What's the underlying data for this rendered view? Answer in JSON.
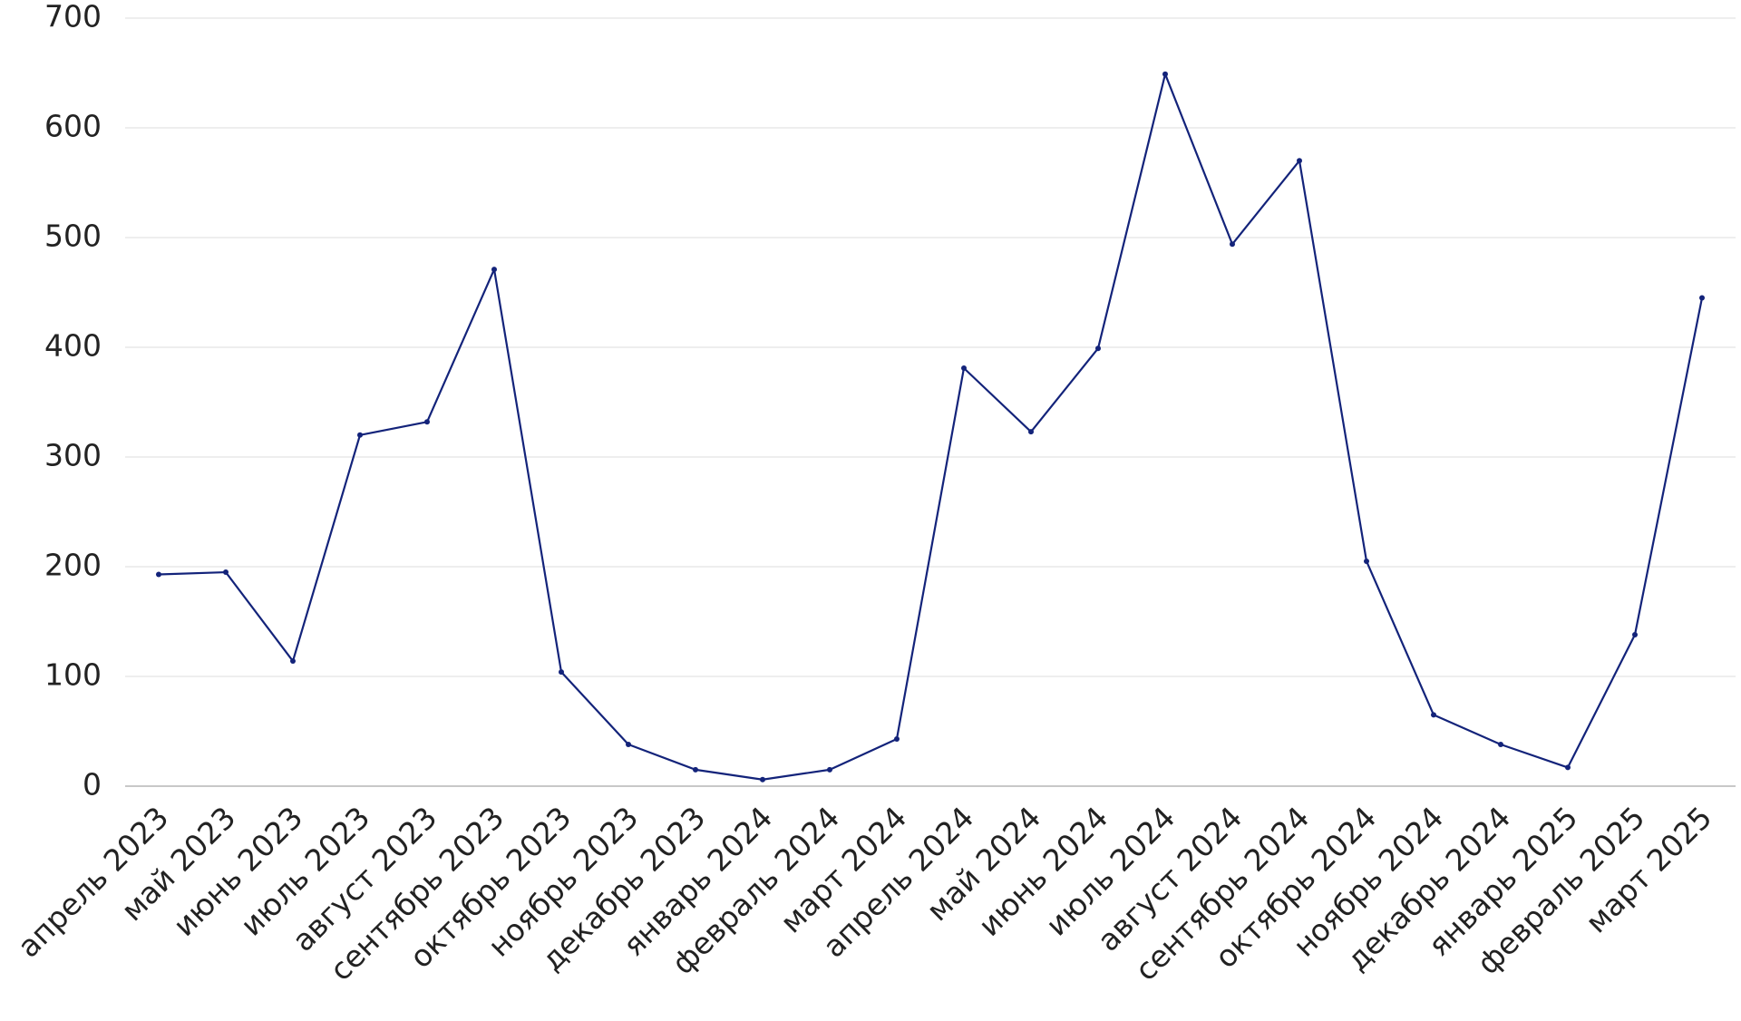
{
  "chart_data": {
    "type": "line",
    "categories": [
      "апрель 2023",
      "май 2023",
      "июнь 2023",
      "июль 2023",
      "август 2023",
      "сентябрь 2023",
      "октябрь 2023",
      "ноябрь 2023",
      "декабрь 2023",
      "январь 2024",
      "февраль 2024",
      "март 2024",
      "апрель 2024",
      "май 2024",
      "июнь 2024",
      "июль 2024",
      "август 2024",
      "сентябрь 2024",
      "октябрь 2024",
      "ноябрь 2024",
      "декабрь 2024",
      "январь 2025",
      "февраль 2025",
      "март 2025"
    ],
    "values": [
      193,
      195,
      114,
      320,
      332,
      471,
      104,
      38,
      15,
      6,
      15,
      43,
      381,
      323,
      399,
      649,
      494,
      570,
      205,
      65,
      38,
      17,
      138,
      445
    ],
    "color": "#13237a",
    "ylim": [
      0,
      700
    ],
    "yticks": [
      0,
      100,
      200,
      300,
      400,
      500,
      600,
      700
    ],
    "grid": true
  }
}
